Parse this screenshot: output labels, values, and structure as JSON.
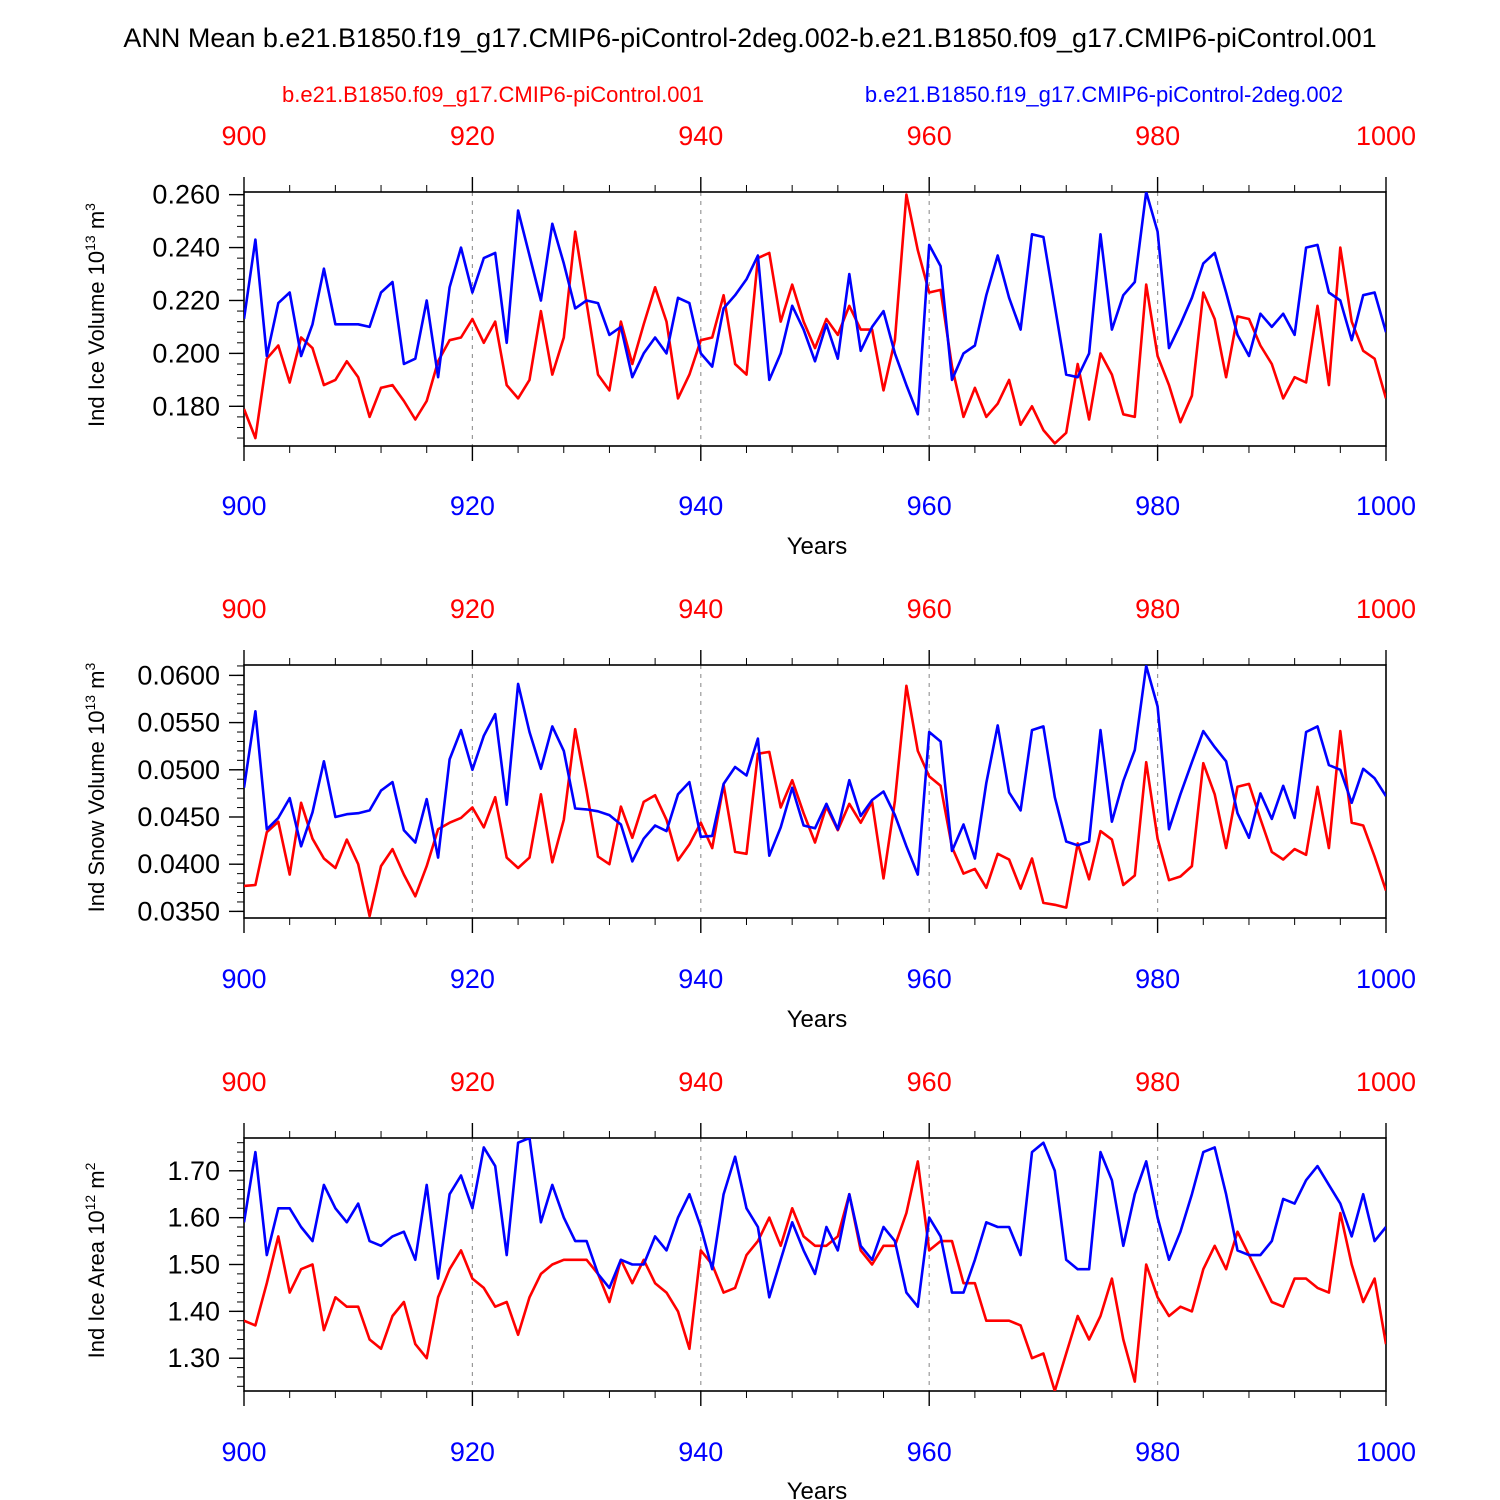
{
  "chart_data": {
    "type": "line",
    "title": "ANN Mean b.e21.B1850.f19_g17.CMIP6-piControl-2deg.002-b.e21.B1850.f09_g17.CMIP6-piControl.001",
    "legend": {
      "red": "b.e21.B1850.f09_g17.CMIP6-piControl.001",
      "blue": "b.e21.B1850.f19_g17.CMIP6-piControl-2deg.002"
    },
    "colors": {
      "red": "#ff0000",
      "blue": "#0000ff",
      "axis": "#000000",
      "grid": "#999999"
    },
    "x": {
      "range": [
        900,
        1000
      ],
      "ticks": [
        900,
        920,
        940,
        960,
        980,
        1000
      ],
      "tick_labels": [
        "900",
        "920",
        "940",
        "960",
        "980",
        "1000"
      ],
      "label": "Years"
    },
    "panels": [
      {
        "ylabel_main": "Ind Ice Volume 10",
        "ylabel_sup": "13",
        "ylabel_unit": " m",
        "ylabel_unit_sup": "3",
        "ylim": [
          0.165,
          0.261
        ],
        "yticks": [
          0.18,
          0.2,
          0.22,
          0.24,
          0.26
        ],
        "ytick_labels": [
          "0.180",
          "0.200",
          "0.220",
          "0.240",
          "0.260"
        ],
        "minor_step": 0.004,
        "series": [
          {
            "name": "b.e21.B1850.f09_g17.CMIP6-piControl.001",
            "color": "red",
            "values": [
              0.179,
              0.168,
              0.198,
              0.203,
              0.189,
              0.206,
              0.202,
              0.188,
              0.19,
              0.197,
              0.191,
              0.176,
              0.187,
              0.188,
              0.182,
              0.175,
              0.182,
              0.197,
              0.205,
              0.206,
              0.213,
              0.204,
              0.212,
              0.188,
              0.183,
              0.19,
              0.216,
              0.192,
              0.206,
              0.246,
              0.219,
              0.192,
              0.186,
              0.212,
              0.196,
              0.211,
              0.225,
              0.212,
              0.183,
              0.192,
              0.205,
              0.206,
              0.222,
              0.196,
              0.192,
              0.236,
              0.238,
              0.212,
              0.226,
              0.212,
              0.202,
              0.213,
              0.207,
              0.218,
              0.209,
              0.209,
              0.186,
              0.205,
              0.26,
              0.239,
              0.223,
              0.224,
              0.195,
              0.176,
              0.187,
              0.176,
              0.181,
              0.19,
              0.173,
              0.18,
              0.171,
              0.166,
              0.17,
              0.196,
              0.175,
              0.2,
              0.192,
              0.177,
              0.176,
              0.226,
              0.199,
              0.188,
              0.174,
              0.184,
              0.223,
              0.213,
              0.191,
              0.214,
              0.213,
              0.203,
              0.196,
              0.183,
              0.191,
              0.189,
              0.218,
              0.188,
              0.24,
              0.212,
              0.201,
              0.198,
              0.183
            ]
          },
          {
            "name": "b.e21.B1850.f19_g17.CMIP6-piControl-2deg.002",
            "color": "blue",
            "values": [
              0.213,
              0.243,
              0.199,
              0.219,
              0.223,
              0.199,
              0.211,
              0.232,
              0.211,
              0.211,
              0.211,
              0.21,
              0.223,
              0.227,
              0.196,
              0.198,
              0.22,
              0.191,
              0.225,
              0.24,
              0.223,
              0.236,
              0.238,
              0.204,
              0.254,
              0.237,
              0.22,
              0.249,
              0.234,
              0.217,
              0.22,
              0.219,
              0.207,
              0.21,
              0.191,
              0.2,
              0.206,
              0.2,
              0.221,
              0.219,
              0.2,
              0.195,
              0.217,
              0.222,
              0.228,
              0.237,
              0.19,
              0.2,
              0.218,
              0.209,
              0.197,
              0.211,
              0.198,
              0.23,
              0.201,
              0.21,
              0.216,
              0.2,
              0.188,
              0.177,
              0.241,
              0.233,
              0.19,
              0.2,
              0.203,
              0.222,
              0.237,
              0.221,
              0.209,
              0.245,
              0.244,
              0.218,
              0.192,
              0.191,
              0.2,
              0.245,
              0.209,
              0.222,
              0.227,
              0.261,
              0.246,
              0.202,
              0.211,
              0.221,
              0.234,
              0.238,
              0.223,
              0.207,
              0.199,
              0.215,
              0.21,
              0.215,
              0.207,
              0.24,
              0.241,
              0.223,
              0.22,
              0.205,
              0.222,
              0.223,
              0.208
            ]
          }
        ]
      },
      {
        "ylabel_main": "Ind Snow Volume 10",
        "ylabel_sup": "13",
        "ylabel_unit": " m",
        "ylabel_unit_sup": "3",
        "ylim": [
          0.0343,
          0.0611
        ],
        "yticks": [
          0.035,
          0.04,
          0.045,
          0.05,
          0.055,
          0.06
        ],
        "ytick_labels": [
          "0.0350",
          "0.0400",
          "0.0450",
          "0.0500",
          "0.0550",
          "0.0600"
        ],
        "minor_step": 0.001,
        "series": [
          {
            "name": "b.e21.B1850.f09_g17.CMIP6-piControl.001",
            "color": "red",
            "values": [
              0.0377,
              0.0378,
              0.0434,
              0.0445,
              0.0389,
              0.0465,
              0.0427,
              0.0406,
              0.0396,
              0.0426,
              0.04,
              0.0345,
              0.0398,
              0.0416,
              0.0389,
              0.0366,
              0.0398,
              0.0437,
              0.0444,
              0.0449,
              0.046,
              0.0439,
              0.0471,
              0.0407,
              0.0396,
              0.0407,
              0.0474,
              0.0402,
              0.0447,
              0.0543,
              0.0478,
              0.0408,
              0.04,
              0.0461,
              0.0428,
              0.0466,
              0.0473,
              0.0447,
              0.0404,
              0.0421,
              0.0444,
              0.0417,
              0.0484,
              0.0413,
              0.0411,
              0.0517,
              0.0519,
              0.046,
              0.0489,
              0.0454,
              0.0423,
              0.0461,
              0.0436,
              0.0464,
              0.0444,
              0.0466,
              0.0385,
              0.0467,
              0.0589,
              0.052,
              0.0493,
              0.0483,
              0.0418,
              0.039,
              0.0395,
              0.0375,
              0.0411,
              0.0405,
              0.0374,
              0.0406,
              0.0359,
              0.0357,
              0.0354,
              0.0422,
              0.0384,
              0.0435,
              0.0426,
              0.0378,
              0.0388,
              0.0508,
              0.0427,
              0.0383,
              0.0387,
              0.0398,
              0.0507,
              0.0474,
              0.0417,
              0.0482,
              0.0485,
              0.0448,
              0.0413,
              0.0405,
              0.0416,
              0.041,
              0.0482,
              0.0417,
              0.0541,
              0.0444,
              0.0441,
              0.0408,
              0.0372
            ]
          },
          {
            "name": "b.e21.B1850.f19_g17.CMIP6-piControl-2deg.002",
            "color": "blue",
            "values": [
              0.0481,
              0.0562,
              0.0437,
              0.0449,
              0.047,
              0.0419,
              0.0455,
              0.0509,
              0.045,
              0.0453,
              0.0454,
              0.0457,
              0.0478,
              0.0487,
              0.0436,
              0.0423,
              0.0469,
              0.0407,
              0.0511,
              0.0542,
              0.05,
              0.0536,
              0.0559,
              0.0463,
              0.0591,
              0.054,
              0.0501,
              0.0546,
              0.052,
              0.0459,
              0.0458,
              0.0456,
              0.0452,
              0.0442,
              0.0403,
              0.0427,
              0.0441,
              0.0435,
              0.0474,
              0.0487,
              0.0429,
              0.043,
              0.0485,
              0.0503,
              0.0494,
              0.0533,
              0.0409,
              0.0439,
              0.0481,
              0.0441,
              0.0438,
              0.0464,
              0.0437,
              0.0489,
              0.0451,
              0.0468,
              0.0477,
              0.0452,
              0.0419,
              0.0389,
              0.054,
              0.053,
              0.0414,
              0.0442,
              0.0406,
              0.0486,
              0.0547,
              0.0476,
              0.0457,
              0.0542,
              0.0546,
              0.0471,
              0.0424,
              0.042,
              0.0424,
              0.0542,
              0.0445,
              0.0488,
              0.0521,
              0.061,
              0.0567,
              0.0437,
              0.0474,
              0.0508,
              0.0541,
              0.0524,
              0.0509,
              0.0454,
              0.0428,
              0.0475,
              0.0448,
              0.0483,
              0.0449,
              0.054,
              0.0546,
              0.0505,
              0.05,
              0.0465,
              0.0501,
              0.0491,
              0.0472
            ]
          }
        ]
      },
      {
        "ylabel_main": "Ind Ice Area 10",
        "ylabel_sup": "12",
        "ylabel_unit": " m",
        "ylabel_unit_sup": "2",
        "ylim": [
          1.23,
          1.77
        ],
        "yticks": [
          1.3,
          1.4,
          1.5,
          1.6,
          1.7
        ],
        "ytick_labels": [
          "1.30",
          "1.40",
          "1.50",
          "1.60",
          "1.70"
        ],
        "minor_step": 0.02,
        "series": [
          {
            "name": "b.e21.B1850.f09_g17.CMIP6-piControl.001",
            "color": "red",
            "values": [
              1.38,
              1.37,
              1.46,
              1.56,
              1.44,
              1.49,
              1.5,
              1.36,
              1.43,
              1.41,
              1.41,
              1.34,
              1.32,
              1.39,
              1.42,
              1.33,
              1.3,
              1.43,
              1.49,
              1.53,
              1.47,
              1.45,
              1.41,
              1.42,
              1.35,
              1.43,
              1.48,
              1.5,
              1.51,
              1.51,
              1.51,
              1.48,
              1.42,
              1.51,
              1.46,
              1.51,
              1.46,
              1.44,
              1.4,
              1.32,
              1.53,
              1.5,
              1.44,
              1.45,
              1.52,
              1.55,
              1.6,
              1.54,
              1.62,
              1.56,
              1.54,
              1.54,
              1.56,
              1.65,
              1.53,
              1.5,
              1.54,
              1.54,
              1.61,
              1.72,
              1.53,
              1.55,
              1.55,
              1.46,
              1.46,
              1.38,
              1.38,
              1.38,
              1.37,
              1.3,
              1.31,
              1.23,
              1.31,
              1.39,
              1.34,
              1.39,
              1.47,
              1.34,
              1.25,
              1.5,
              1.43,
              1.39,
              1.41,
              1.4,
              1.49,
              1.54,
              1.49,
              1.57,
              1.52,
              1.47,
              1.42,
              1.41,
              1.47,
              1.47,
              1.45,
              1.44,
              1.61,
              1.5,
              1.42,
              1.47,
              1.33
            ]
          },
          {
            "name": "b.e21.B1850.f19_g17.CMIP6-piControl-2deg.002",
            "color": "blue",
            "values": [
              1.59,
              1.74,
              1.52,
              1.62,
              1.62,
              1.58,
              1.55,
              1.67,
              1.62,
              1.59,
              1.63,
              1.55,
              1.54,
              1.56,
              1.57,
              1.51,
              1.67,
              1.47,
              1.65,
              1.69,
              1.62,
              1.75,
              1.71,
              1.52,
              1.76,
              1.77,
              1.59,
              1.67,
              1.6,
              1.55,
              1.55,
              1.48,
              1.45,
              1.51,
              1.5,
              1.5,
              1.56,
              1.53,
              1.6,
              1.65,
              1.58,
              1.49,
              1.65,
              1.73,
              1.62,
              1.58,
              1.43,
              1.51,
              1.59,
              1.53,
              1.48,
              1.58,
              1.53,
              1.65,
              1.54,
              1.51,
              1.58,
              1.55,
              1.44,
              1.41,
              1.6,
              1.56,
              1.44,
              1.44,
              1.51,
              1.59,
              1.58,
              1.58,
              1.52,
              1.74,
              1.76,
              1.7,
              1.51,
              1.49,
              1.49,
              1.74,
              1.68,
              1.54,
              1.65,
              1.72,
              1.6,
              1.51,
              1.57,
              1.65,
              1.74,
              1.75,
              1.65,
              1.53,
              1.52,
              1.52,
              1.55,
              1.64,
              1.63,
              1.68,
              1.71,
              1.67,
              1.63,
              1.56,
              1.65,
              1.55,
              1.58
            ]
          }
        ]
      }
    ]
  }
}
